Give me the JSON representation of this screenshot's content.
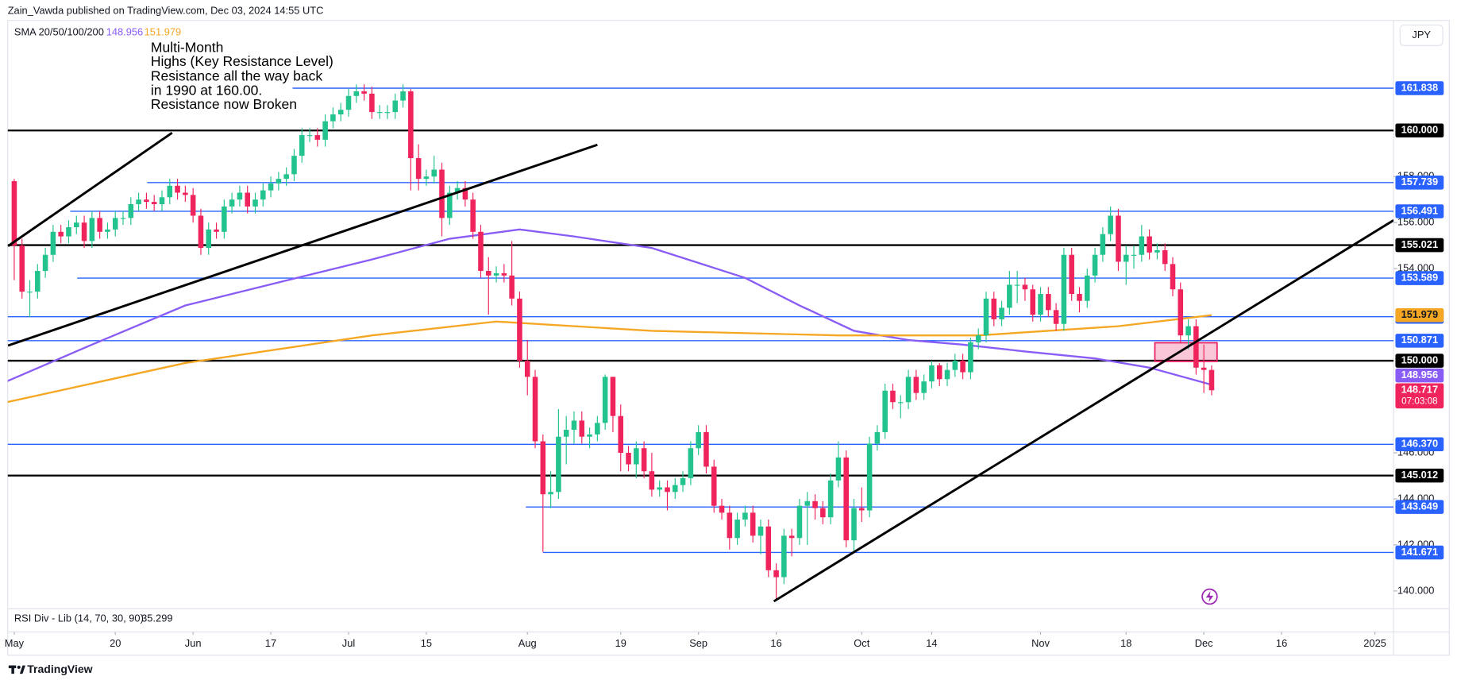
{
  "chart_data": {
    "type": "candlestick",
    "header": "Zain_Vawda published on TradingView.com, Dec 03, 2024 14:55 UTC",
    "indicator_label": "SMA 20/50/100/200",
    "currency": "JPY",
    "annotation": [
      "Multi-Month",
      "Highs (Key Resistance Level)",
      "Resistance all the way back",
      "in 1990 at 160.00.",
      "Resistance now Broken"
    ],
    "rsi_label": "RSI Div - Lib (14, 70, 30, 90)",
    "rsi_value": 35.299,
    "countdown": "07:03:08",
    "brand": "TradingView",
    "up_color": "#22c38e",
    "down_color": "#f0245c",
    "grid": false,
    "xlim": [
      -0.84,
      177.4
    ],
    "xticks": [
      {
        "value": 0,
        "label": "May"
      },
      {
        "value": 13,
        "label": "20"
      },
      {
        "value": 23,
        "label": "Jun"
      },
      {
        "value": 33,
        "label": "17"
      },
      {
        "value": 43,
        "label": "Jul"
      },
      {
        "value": 53,
        "label": "15"
      },
      {
        "value": 66,
        "label": "Aug"
      },
      {
        "value": 78,
        "label": "19"
      },
      {
        "value": 88,
        "label": "Sep"
      },
      {
        "value": 98,
        "label": "16"
      },
      {
        "value": 109,
        "label": "Oct"
      },
      {
        "value": 118,
        "label": "14"
      },
      {
        "value": 132,
        "label": "Nov"
      },
      {
        "value": 143,
        "label": "18"
      },
      {
        "value": 153,
        "label": "Dec"
      },
      {
        "value": 163,
        "label": "16"
      },
      {
        "value": 175,
        "label": "2025"
      }
    ],
    "ylim": [
      139.35,
      164.78
    ],
    "yticks": [
      {
        "value": 140,
        "label": "140.000"
      },
      {
        "value": 142,
        "label": "142.000"
      },
      {
        "value": 144,
        "label": "144.000"
      },
      {
        "value": 146,
        "label": "146.000"
      },
      {
        "value": 154,
        "label": "154.000"
      },
      {
        "value": 156,
        "label": "156.000"
      },
      {
        "value": 158,
        "label": "158.000"
      }
    ],
    "open": [
      157.8,
      155.0,
      153.0,
      153.0,
      153.9,
      154.6,
      155.6,
      155.4,
      155.8,
      156.0,
      155.2,
      156.2,
      155.6,
      155.7,
      156.2,
      156.2,
      156.8,
      157.0,
      156.9,
      156.8,
      157.1,
      157.6,
      157.3,
      157.2,
      156.3,
      154.9,
      155.7,
      155.6,
      156.7,
      157.0,
      157.3,
      156.7,
      157.0,
      157.4,
      157.7,
      157.9,
      158.1,
      158.9,
      159.8,
      159.8,
      159.6,
      160.4,
      160.7,
      160.9,
      161.5,
      161.7,
      161.6,
      160.8,
      160.8,
      160.8,
      161.3,
      161.7,
      158.8,
      157.9,
      158.0,
      158.3,
      156.2,
      157.3,
      157.5,
      157.0,
      155.6,
      153.9,
      153.7,
      153.8,
      153.7,
      152.7,
      150.0,
      149.3,
      146.5,
      144.2,
      144.3,
      146.7,
      147.0,
      147.4,
      146.7,
      146.8,
      147.3,
      149.3,
      147.6,
      146.0,
      145.5,
      146.2,
      145.2,
      144.4,
      144.5,
      144.3,
      144.6,
      144.9,
      146.2,
      146.9,
      145.4,
      143.7,
      143.4,
      142.3,
      143.1,
      143.4,
      142.4,
      142.8,
      140.9,
      140.6,
      142.4,
      142.3,
      143.7,
      143.9,
      143.6,
      143.2,
      144.8,
      145.8,
      142.2,
      143.6,
      143.5,
      146.4,
      146.9,
      148.7,
      148.2,
      148.2,
      149.3,
      148.6,
      149.1,
      149.8,
      149.2,
      149.6,
      150.0,
      149.5,
      150.8,
      151.1,
      152.7,
      151.8,
      152.3,
      153.3,
      153.3,
      153.1,
      152.0,
      152.9,
      152.2,
      151.6,
      154.6,
      152.9,
      152.6,
      153.7,
      154.6,
      155.5,
      156.3,
      154.3,
      154.6,
      154.6,
      155.4,
      154.7,
      154.8,
      154.2,
      153.1,
      151.1,
      151.5,
      149.7,
      149.6
    ],
    "high": [
      157.9,
      155.3,
      153.5,
      154.2,
      154.9,
      155.9,
      155.9,
      156.1,
      156.3,
      156.3,
      156.5,
      156.5,
      156.0,
      156.5,
      156.5,
      157.1,
      157.3,
      157.3,
      157.2,
      157.4,
      157.9,
      157.9,
      157.6,
      157.5,
      156.6,
      156.0,
      156.0,
      157.0,
      157.3,
      157.6,
      157.6,
      157.3,
      157.7,
      158.0,
      158.2,
      158.4,
      159.2,
      160.1,
      160.1,
      160.1,
      160.7,
      161.0,
      161.2,
      161.8,
      162.0,
      162.0,
      161.9,
      161.1,
      161.1,
      161.6,
      162.0,
      161.8,
      159.4,
      158.3,
      158.9,
      158.6,
      157.6,
      157.8,
      157.8,
      157.3,
      155.9,
      154.5,
      154.1,
      154.2,
      155.2,
      153.0,
      150.9,
      149.6,
      146.8,
      145.2,
      147.9,
      147.6,
      147.8,
      147.8,
      147.1,
      147.6,
      149.4,
      149.3,
      148.1,
      146.3,
      146.5,
      146.5,
      146.0,
      144.8,
      144.8,
      144.9,
      145.2,
      146.5,
      147.2,
      147.2,
      145.7,
      144.0,
      143.7,
      143.4,
      143.7,
      143.7,
      143.1,
      143.1,
      141.2,
      142.7,
      142.7,
      144.0,
      144.3,
      144.2,
      143.9,
      145.1,
      146.5,
      146.1,
      144.0,
      144.5,
      146.7,
      147.2,
      149.0,
      149.0,
      148.5,
      149.6,
      149.6,
      149.4,
      150.0,
      149.9,
      149.9,
      150.3,
      150.3,
      151.0,
      151.4,
      153.0,
      153.0,
      152.6,
      153.9,
      153.9,
      153.6,
      153.3,
      153.2,
      153.2,
      152.5,
      154.9,
      154.9,
      153.2,
      154.0,
      154.9,
      155.8,
      156.7,
      156.6,
      155.0,
      155.0,
      155.9,
      155.7,
      155.1,
      155.1,
      154.5,
      153.4,
      151.8,
      151.8,
      150.7,
      149.8
    ],
    "low": [
      153.5,
      152.7,
      151.9,
      152.7,
      153.6,
      154.3,
      155.1,
      155.1,
      155.5,
      154.9,
      154.9,
      155.3,
      155.3,
      155.4,
      155.9,
      155.9,
      156.5,
      156.6,
      156.5,
      156.5,
      156.8,
      157.0,
      156.9,
      156.0,
      154.6,
      154.6,
      155.3,
      155.3,
      156.4,
      156.7,
      156.4,
      156.4,
      156.7,
      157.1,
      157.4,
      157.6,
      157.8,
      158.6,
      159.5,
      159.3,
      159.3,
      160.1,
      160.4,
      160.6,
      161.2,
      161.3,
      160.5,
      160.5,
      160.5,
      160.5,
      161.0,
      157.4,
      157.4,
      157.6,
      157.7,
      155.4,
      155.9,
      157.0,
      156.7,
      155.3,
      153.6,
      152.0,
      153.4,
      153.4,
      152.4,
      149.7,
      148.5,
      146.2,
      141.7,
      143.6,
      144.0,
      145.5,
      146.4,
      146.4,
      146.2,
      146.5,
      147.0,
      146.9,
      145.2,
      145.2,
      144.9,
      144.9,
      144.1,
      144.1,
      143.5,
      144.0,
      144.3,
      144.6,
      145.9,
      145.1,
      143.4,
      143.1,
      141.8,
      142.0,
      142.8,
      142.1,
      141.6,
      140.6,
      139.6,
      140.3,
      141.5,
      142.0,
      142.0,
      143.1,
      142.9,
      142.9,
      144.5,
      141.9,
      141.7,
      143.0,
      143.2,
      146.1,
      146.6,
      147.9,
      147.5,
      147.9,
      148.3,
      148.3,
      148.8,
      148.9,
      148.9,
      149.3,
      149.2,
      149.2,
      150.5,
      150.8,
      151.5,
      151.5,
      152.0,
      152.5,
      152.6,
      151.7,
      151.7,
      151.9,
      151.3,
      151.3,
      152.6,
      152.1,
      152.3,
      153.4,
      154.3,
      155.2,
      153.9,
      153.3,
      154.0,
      154.3,
      154.4,
      154.4,
      153.9,
      152.8,
      150.8,
      150.5,
      149.4,
      148.6,
      148.5
    ],
    "close": [
      155.0,
      153.0,
      153.0,
      153.9,
      154.6,
      155.6,
      155.4,
      155.8,
      156.0,
      155.2,
      156.2,
      155.6,
      155.7,
      156.2,
      156.2,
      156.8,
      157.0,
      156.9,
      156.8,
      157.1,
      157.6,
      157.3,
      157.2,
      156.3,
      154.9,
      155.7,
      155.6,
      156.7,
      157.0,
      157.3,
      156.7,
      157.0,
      157.4,
      157.7,
      157.9,
      158.1,
      158.9,
      159.8,
      159.8,
      159.6,
      160.4,
      160.7,
      160.9,
      161.5,
      161.7,
      161.6,
      160.8,
      160.8,
      160.8,
      161.3,
      161.7,
      158.8,
      157.9,
      158.0,
      158.3,
      156.2,
      157.3,
      157.5,
      157.0,
      155.6,
      153.9,
      153.7,
      153.8,
      153.7,
      152.7,
      150.0,
      149.3,
      146.5,
      144.2,
      144.3,
      146.7,
      147.0,
      147.4,
      146.7,
      146.8,
      147.3,
      149.3,
      147.6,
      146.0,
      145.5,
      146.2,
      145.2,
      144.4,
      144.5,
      144.3,
      144.6,
      144.9,
      146.2,
      146.9,
      145.4,
      143.7,
      143.4,
      142.3,
      143.1,
      143.4,
      142.4,
      142.8,
      140.9,
      140.6,
      142.4,
      142.3,
      143.7,
      143.9,
      143.6,
      143.2,
      144.8,
      145.8,
      142.2,
      143.6,
      143.5,
      146.4,
      146.9,
      148.7,
      148.2,
      148.2,
      149.3,
      148.6,
      149.1,
      149.8,
      149.2,
      149.6,
      150.0,
      149.5,
      150.8,
      151.1,
      152.7,
      151.8,
      152.3,
      153.3,
      153.3,
      153.1,
      152.0,
      152.9,
      152.2,
      151.6,
      154.6,
      152.9,
      152.6,
      153.7,
      154.6,
      155.5,
      156.3,
      154.3,
      154.6,
      154.6,
      155.4,
      154.7,
      154.8,
      154.2,
      153.1,
      151.1,
      151.5,
      149.7,
      149.6,
      148.717
    ],
    "series": [
      {
        "color": "#8a5cf6",
        "x": [
          -1,
          10,
          22,
          34,
          46,
          56,
          65,
          72,
          82,
          94,
          101,
          108,
          115,
          122,
          130,
          139,
          146,
          154
        ],
        "values": [
          149.1,
          150.7,
          152.4,
          153.4,
          154.4,
          155.3,
          155.7,
          155.4,
          154.9,
          153.6,
          152.4,
          151.3,
          150.9,
          150.7,
          150.4,
          150.1,
          149.7,
          148.956
        ]
      },
      {
        "color": "#f5a623",
        "x": [
          -1,
          22,
          46,
          62,
          82,
          106,
          124,
          142,
          154
        ],
        "values": [
          148.2,
          149.9,
          151.1,
          151.7,
          151.3,
          151.1,
          151.1,
          151.5,
          151.979
        ]
      }
    ],
    "levels": [
      {
        "value": 161.838,
        "color": "#2962ff",
        "from": 35.8
      },
      {
        "value": 160,
        "label": "160.000",
        "color": "#000000"
      },
      {
        "value": 157.739,
        "color": "#2962ff",
        "from": 17.1
      },
      {
        "value": 156.491,
        "color": "#2962ff",
        "from": 7.2
      },
      {
        "value": 155.021,
        "color": "#000000"
      },
      {
        "value": 153.589,
        "color": "#2962ff",
        "from": 8.1
      },
      {
        "value": 151.911,
        "color": "#2962ff"
      },
      {
        "value": 150.871,
        "color": "#2962ff"
      },
      {
        "value": 150,
        "label": "150.000",
        "color": "#000000"
      },
      {
        "value": 146.37,
        "label": "146.370",
        "color": "#2962ff"
      },
      {
        "value": 145.012,
        "color": "#000000"
      },
      {
        "value": 143.649,
        "color": "#2962ff",
        "from": 65.8
      },
      {
        "value": 141.671,
        "color": "#2962ff",
        "from": 68
      }
    ],
    "trendlines": [
      {
        "x": [
          -0.8,
          20.3
        ],
        "y": [
          154.98,
          159.9
        ]
      },
      {
        "x": [
          -0.8,
          75.0
        ],
        "y": [
          150.66,
          159.38
        ]
      },
      {
        "x": [
          97.7,
          177.4
        ],
        "y": [
          139.55,
          156.1
        ]
      }
    ],
    "zone": {
      "x": [
        146.7,
        154.7
      ],
      "y": [
        150.78,
        149.97
      ],
      "color": "#e91e63"
    }
  }
}
